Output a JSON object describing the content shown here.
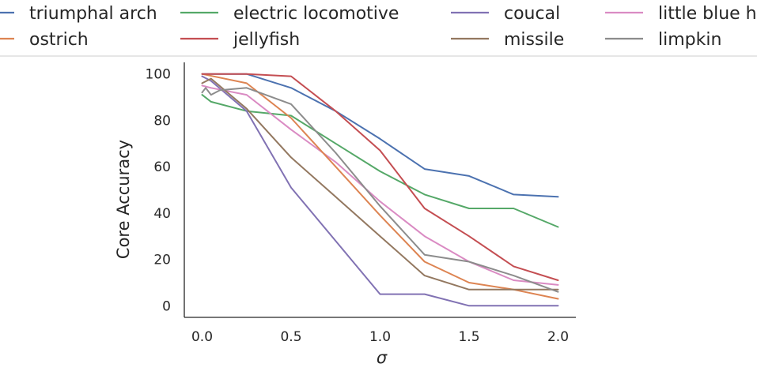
{
  "chart_data": {
    "type": "line",
    "title": "",
    "xlabel": "σ",
    "ylabel": "Core Accuracy",
    "xlim": [
      -0.1,
      2.1
    ],
    "ylim": [
      -5,
      105
    ],
    "xticks": [
      "0.0",
      "0.5",
      "1.0",
      "1.5",
      "2.0"
    ],
    "xtick_values": [
      0.0,
      0.5,
      1.0,
      1.5,
      2.0
    ],
    "yticks": [
      "0",
      "20",
      "40",
      "60",
      "80",
      "100"
    ],
    "ytick_values": [
      0,
      20,
      40,
      60,
      80,
      100
    ],
    "grid": false,
    "legend_location": "top",
    "legend_order": [
      "triumphal arch",
      "electric locomotive",
      "coucal",
      "little blue heron",
      "ostrich",
      "jellyfish",
      "missile",
      "limpkin"
    ],
    "series": [
      {
        "name": "triumphal arch",
        "color": "#4c72b0",
        "x": [
          0.0,
          0.25,
          0.5,
          0.75,
          1.0,
          1.25,
          1.5,
          1.75,
          2.0
        ],
        "y": [
          100,
          100,
          94,
          84,
          72,
          59,
          56,
          48,
          47
        ]
      },
      {
        "name": "electric locomotive",
        "color": "#55a868",
        "x": [
          0.0,
          0.05,
          0.25,
          0.5,
          0.75,
          1.0,
          1.25,
          1.5,
          1.75,
          2.0
        ],
        "y": [
          91,
          88,
          84,
          82,
          70,
          58,
          48,
          42,
          42,
          34
        ]
      },
      {
        "name": "coucal",
        "color": "#8172b3",
        "x": [
          0.0,
          0.05,
          0.25,
          0.5,
          0.75,
          1.0,
          1.25,
          1.5,
          1.75,
          2.0
        ],
        "y": [
          99,
          97,
          84,
          51,
          28,
          5,
          5,
          0,
          0,
          0
        ]
      },
      {
        "name": "little blue heron",
        "color": "#da8bc3",
        "x": [
          0.0,
          0.05,
          0.25,
          0.5,
          0.75,
          1.0,
          1.25,
          1.5,
          1.75,
          2.0
        ],
        "y": [
          95,
          94,
          91,
          76,
          62,
          45,
          30,
          19,
          11,
          9
        ]
      },
      {
        "name": "ostrich",
        "color": "#dd8452",
        "x": [
          0.0,
          0.25,
          0.5,
          0.75,
          1.0,
          1.25,
          1.5,
          1.75,
          2.0
        ],
        "y": [
          100,
          96,
          81,
          60,
          39,
          19,
          10,
          7,
          3
        ]
      },
      {
        "name": "jellyfish",
        "color": "#c44e52",
        "x": [
          0.0,
          0.25,
          0.5,
          0.75,
          1.0,
          1.25,
          1.5,
          1.75,
          2.0
        ],
        "y": [
          100,
          100,
          99,
          84,
          67,
          42,
          30,
          17,
          11
        ]
      },
      {
        "name": "missile",
        "color": "#937860",
        "x": [
          0.0,
          0.05,
          0.25,
          0.5,
          0.75,
          1.0,
          1.25,
          1.5,
          1.75,
          2.0
        ],
        "y": [
          96,
          98,
          85,
          64,
          47,
          30,
          13,
          7,
          7,
          7
        ]
      },
      {
        "name": "limpkin",
        "color": "#8c8c8c",
        "x": [
          0.0,
          0.02,
          0.05,
          0.1,
          0.25,
          0.5,
          0.75,
          1.0,
          1.25,
          1.5,
          1.75,
          2.0
        ],
        "y": [
          92,
          94,
          91,
          93,
          94,
          87,
          66,
          43,
          22,
          19,
          13,
          6
        ]
      }
    ]
  }
}
